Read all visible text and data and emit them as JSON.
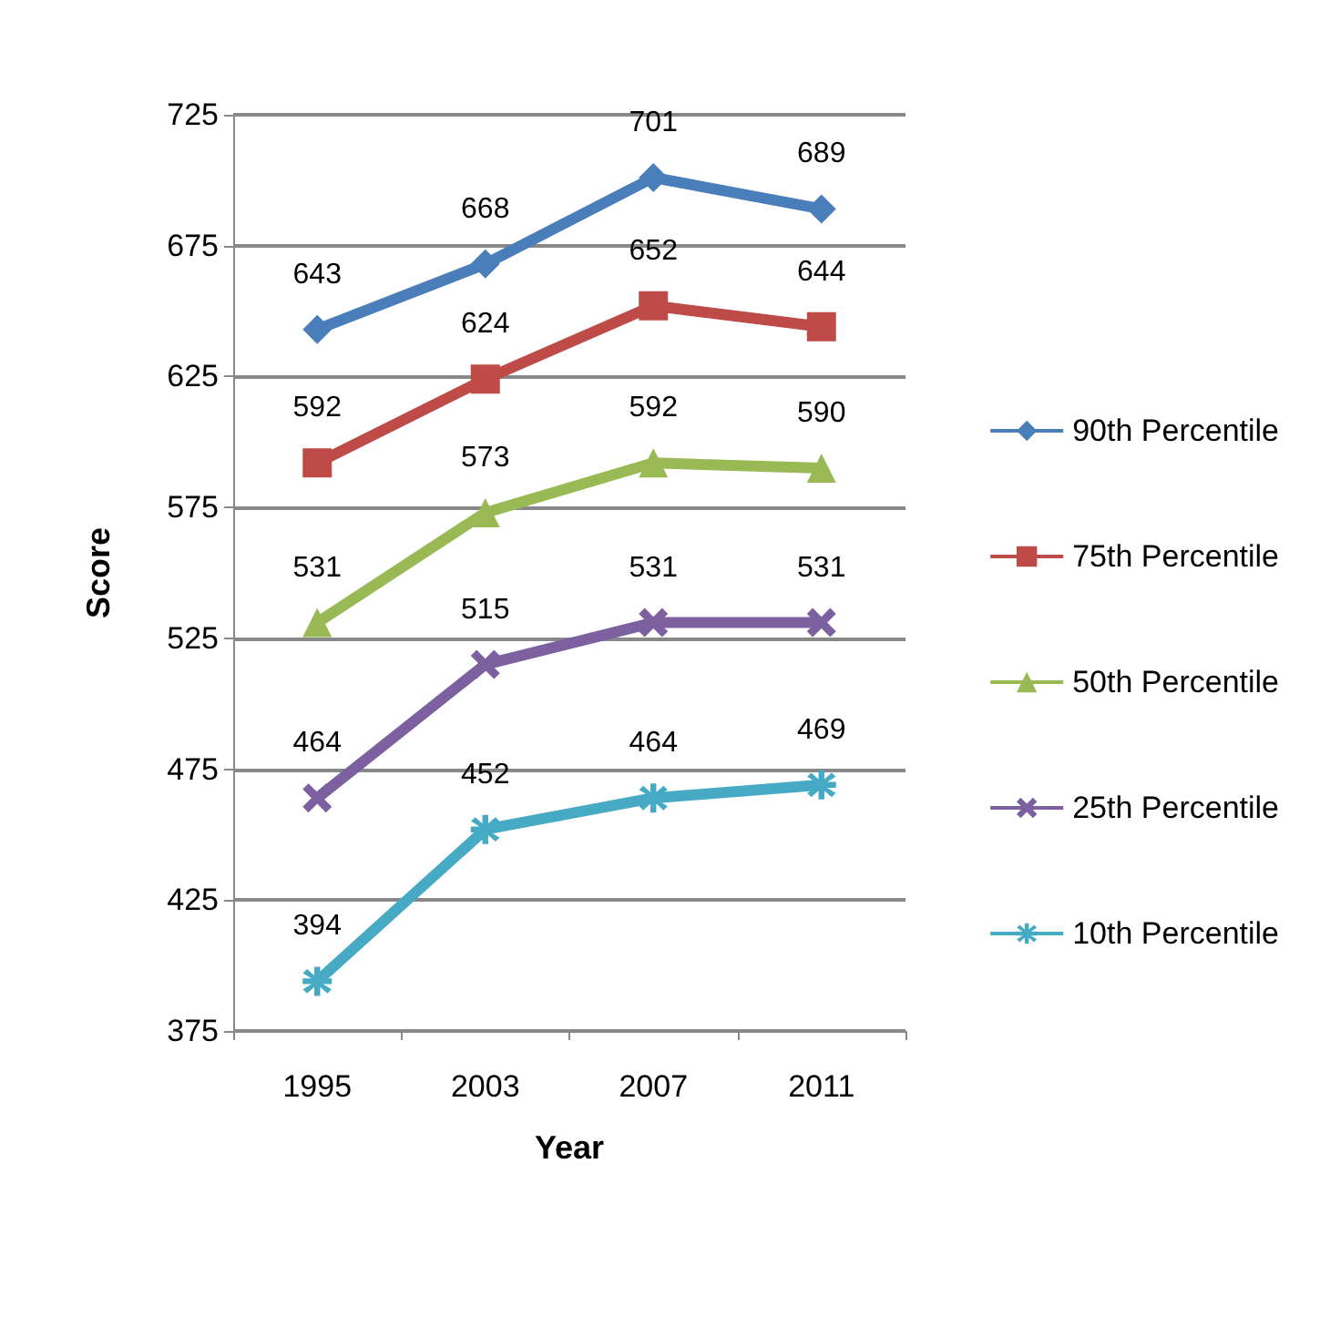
{
  "chart_data": {
    "type": "line",
    "xlabel": "Year",
    "ylabel": "Score",
    "categories": [
      "1995",
      "2003",
      "2007",
      "2011"
    ],
    "series": [
      {
        "name": "90th Percentile",
        "color": "#4a7ebb",
        "marker": "diamond",
        "values": [
          643,
          668,
          701,
          689
        ]
      },
      {
        "name": "75th Percentile",
        "color": "#be4b48",
        "marker": "square",
        "values": [
          592,
          624,
          652,
          644
        ]
      },
      {
        "name": "50th Percentile",
        "color": "#98b954",
        "marker": "triangle",
        "values": [
          531,
          573,
          592,
          590
        ]
      },
      {
        "name": "25th Percentile",
        "color": "#7d60a0",
        "marker": "cross",
        "values": [
          464,
          515,
          531,
          531
        ]
      },
      {
        "name": "10th Percentile",
        "color": "#46aac5",
        "marker": "star",
        "values": [
          394,
          452,
          464,
          469
        ]
      }
    ],
    "ylim": [
      375,
      725
    ],
    "yticks": [
      375,
      425,
      475,
      525,
      575,
      625,
      675,
      725
    ],
    "grid": "y",
    "legend": "right",
    "data_labels": true
  }
}
